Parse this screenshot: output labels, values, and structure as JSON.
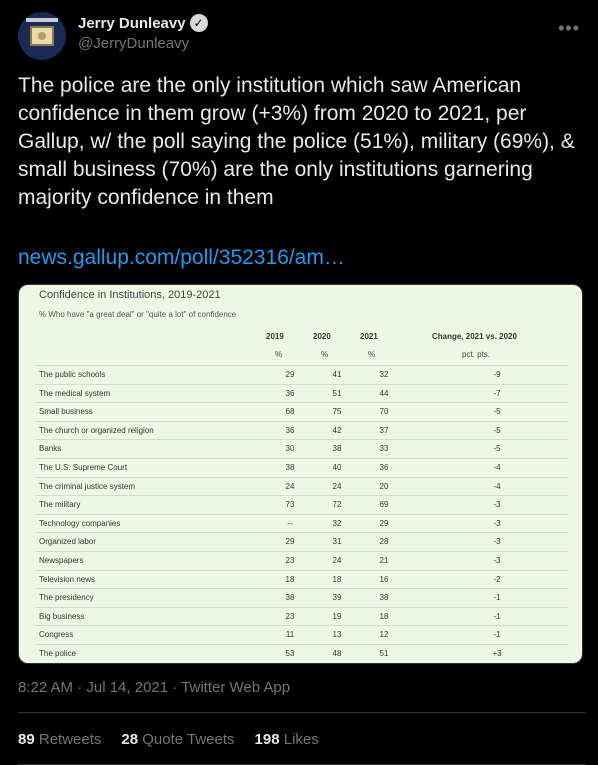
{
  "author": {
    "display_name": "Jerry Dunleavy",
    "handle": "@JerryDunleavy",
    "verified_glyph": "✓"
  },
  "more_glyph": "•••",
  "tweet": {
    "text": "The police are the only institution which saw American confidence in them grow (+3%) from 2020 to 2021, per Gallup, w/ the poll saying the police (51%), military (69%), & small business (70%) are the only institutions garnering majority confidence in them",
    "link": "news.gallup.com/poll/352316/am…"
  },
  "card": {
    "title": "Confidence in Institutions, 2019-2021",
    "subtitle": "% Who have \"a great deal\" or \"quite a lot\" of confidence",
    "headers": {
      "y2019": "2019",
      "y2020": "2020",
      "y2021": "2021",
      "change": "Change, 2021 vs. 2020"
    },
    "units": {
      "y2019": "%",
      "y2020": "%",
      "y2021": "%",
      "change": "pct. pts."
    },
    "rows": [
      {
        "label": "The public schools",
        "y2019": "29",
        "y2020": "41",
        "y2021": "32",
        "change": "-9"
      },
      {
        "label": "The medical system",
        "y2019": "36",
        "y2020": "51",
        "y2021": "44",
        "change": "-7"
      },
      {
        "label": "Small business",
        "y2019": "68",
        "y2020": "75",
        "y2021": "70",
        "change": "-5"
      },
      {
        "label": "The church or organized religion",
        "y2019": "36",
        "y2020": "42",
        "y2021": "37",
        "change": "-5"
      },
      {
        "label": "Banks",
        "y2019": "30",
        "y2020": "38",
        "y2021": "33",
        "change": "-5"
      },
      {
        "label": "The U.S. Supreme Court",
        "y2019": "38",
        "y2020": "40",
        "y2021": "36",
        "change": "-4"
      },
      {
        "label": "The criminal justice system",
        "y2019": "24",
        "y2020": "24",
        "y2021": "20",
        "change": "-4"
      },
      {
        "label": "The military",
        "y2019": "73",
        "y2020": "72",
        "y2021": "69",
        "change": "-3"
      },
      {
        "label": "Technology companies",
        "y2019": "--",
        "y2020": "32",
        "y2021": "29",
        "change": "-3"
      },
      {
        "label": "Organized labor",
        "y2019": "29",
        "y2020": "31",
        "y2021": "28",
        "change": "-3"
      },
      {
        "label": "Newspapers",
        "y2019": "23",
        "y2020": "24",
        "y2021": "21",
        "change": "-3"
      },
      {
        "label": "Television news",
        "y2019": "18",
        "y2020": "18",
        "y2021": "16",
        "change": "-2"
      },
      {
        "label": "The presidency",
        "y2019": "38",
        "y2020": "39",
        "y2021": "38",
        "change": "-1"
      },
      {
        "label": "Big business",
        "y2019": "23",
        "y2020": "19",
        "y2021": "18",
        "change": "-1"
      },
      {
        "label": "Congress",
        "y2019": "11",
        "y2020": "13",
        "y2021": "12",
        "change": "-1"
      },
      {
        "label": "The police",
        "y2019": "53",
        "y2020": "48",
        "y2021": "51",
        "change": "+3"
      }
    ]
  },
  "meta": "8:22 AM · Jul 14, 2021 · Twitter Web App",
  "stats": {
    "retweets_count": "89",
    "retweets_label": "Retweets",
    "quotes_count": "28",
    "quotes_label": "Quote Tweets",
    "likes_count": "198",
    "likes_label": "Likes"
  }
}
